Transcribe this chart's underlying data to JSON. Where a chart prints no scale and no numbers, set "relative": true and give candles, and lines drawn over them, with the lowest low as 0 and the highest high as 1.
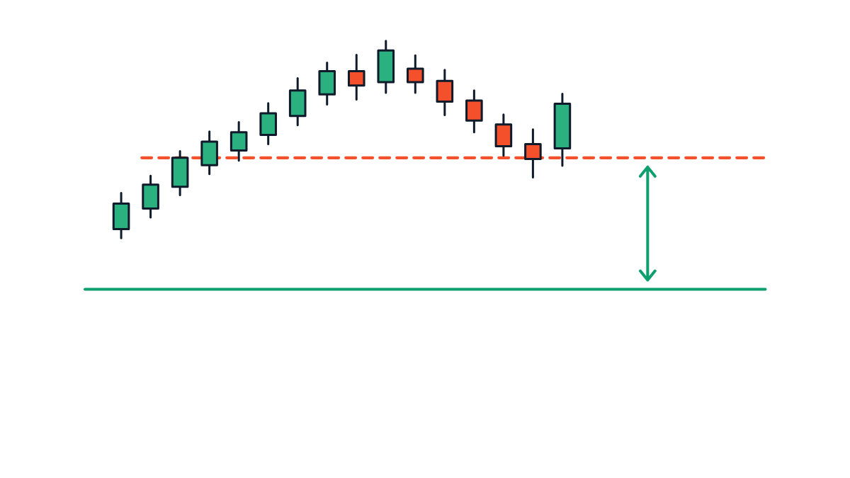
{
  "chart_data": {
    "type": "candlestick",
    "relative": true,
    "categories": [
      null,
      null,
      null,
      null,
      null,
      null,
      null,
      null,
      null,
      null,
      null,
      null,
      null,
      null,
      null,
      null
    ],
    "ohlc": [
      [
        0.045,
        0.229,
        0,
        0.175
      ],
      [
        0.15,
        0.316,
        0.105,
        0.271
      ],
      [
        0.26,
        0.441,
        0.218,
        0.407
      ],
      [
        0.37,
        0.54,
        0.325,
        0.489
      ],
      [
        0.444,
        0.588,
        0.393,
        0.537
      ],
      [
        0.523,
        0.684,
        0.477,
        0.633
      ],
      [
        0.619,
        0.811,
        0.573,
        0.749
      ],
      [
        0.729,
        0.89,
        0.678,
        0.847
      ],
      [
        0.847,
        0.929,
        0.703,
        0.774
      ],
      [
        0.791,
        1,
        0.737,
        0.952
      ],
      [
        0.859,
        0.927,
        0.737,
        0.791
      ],
      [
        0.797,
        0.853,
        0.624,
        0.692
      ],
      [
        0.698,
        0.749,
        0.537,
        0.596
      ],
      [
        0.576,
        0.627,
        0.418,
        0.466
      ],
      [
        0.477,
        0.551,
        0.308,
        0.401
      ],
      [
        0.455,
        0.732,
        0.367,
        0.681
      ]
    ],
    "colors": [
      "#2bb07f",
      "#2bb07f",
      "#2bb07f",
      "#2bb07f",
      "#2bb07f",
      "#2bb07f",
      "#2bb07f",
      "#2bb07f",
      "#f4502b",
      "#2bb07f",
      "#f4502b",
      "#f4502b",
      "#f4502b",
      "#f4502b",
      "#f4502b",
      "#2bb07f"
    ],
    "ref_lines": [
      {
        "axis": "y",
        "value": 0.407,
        "color": "#f4502b",
        "line_style": "dashed"
      },
      {
        "axis": "y",
        "value": -0.26,
        "color": "#0e9f6e",
        "line_style": "solid"
      }
    ]
  }
}
